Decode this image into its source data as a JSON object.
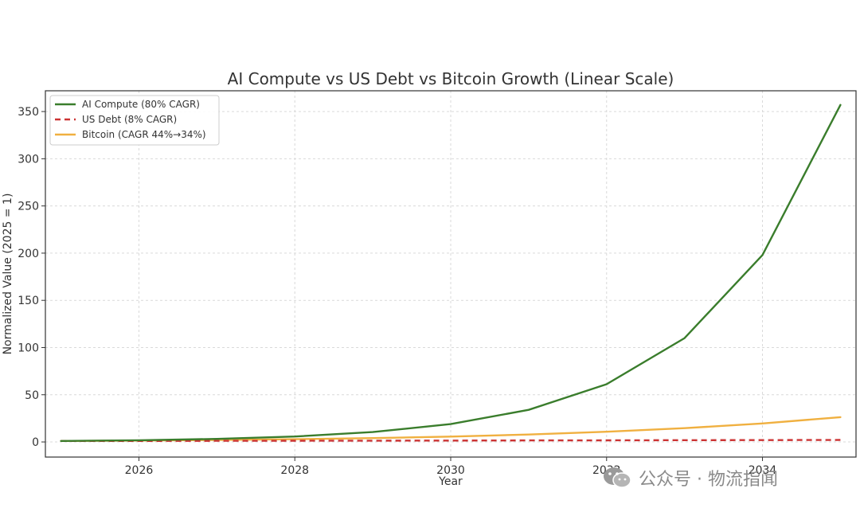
{
  "watermark": {
    "text": "公众号 · 物流指闻",
    "icon": "wechat-icon"
  },
  "chart_data": {
    "type": "line",
    "title": "AI Compute vs US Debt vs Bitcoin Growth (Linear Scale)",
    "xlabel": "Year",
    "ylabel": "Normalized Value (2025 = 1)",
    "xlim": [
      2024.8,
      2035.2
    ],
    "ylim": [
      -16,
      372
    ],
    "xticks": [
      2026,
      2028,
      2030,
      2032,
      2034
    ],
    "yticks": [
      0,
      50,
      100,
      150,
      200,
      250,
      300,
      350
    ],
    "grid": true,
    "legend": "top-left",
    "x": [
      2025,
      2026,
      2027,
      2028,
      2029,
      2030,
      2031,
      2032,
      2033,
      2034,
      2035
    ],
    "series": [
      {
        "name": "AI Compute (80% CAGR)",
        "color": "#3a7d2c",
        "style": "solid",
        "values": [
          1,
          1.8,
          3.2,
          5.8,
          10.5,
          18.9,
          34,
          61.2,
          110,
          198,
          357
        ]
      },
      {
        "name": "US Debt (8% CAGR)",
        "color": "#cc3333",
        "style": "dashed",
        "values": [
          1,
          1.08,
          1.17,
          1.26,
          1.36,
          1.47,
          1.59,
          1.71,
          1.85,
          2.0,
          2.16
        ]
      },
      {
        "name": "Bitcoin (CAGR 44%→34%)",
        "color": "#f0b040",
        "style": "solid",
        "values": [
          1,
          1.44,
          2.06,
          2.92,
          4.1,
          5.7,
          7.9,
          10.8,
          14.6,
          19.6,
          26.3
        ]
      }
    ]
  }
}
